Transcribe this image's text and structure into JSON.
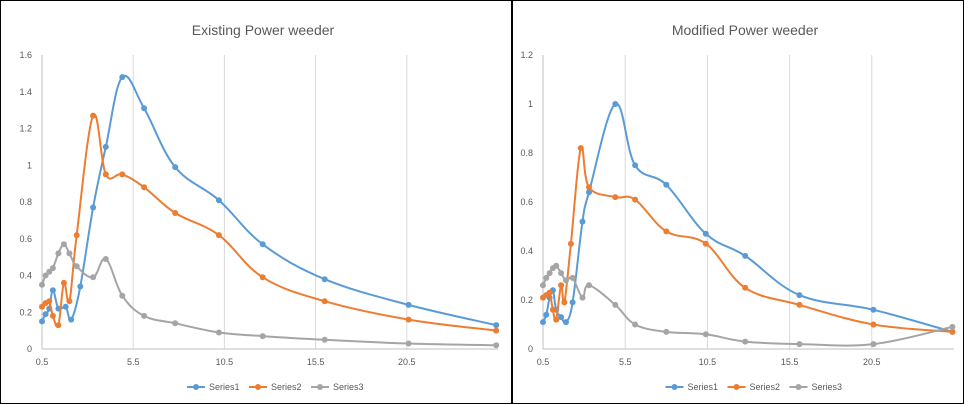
{
  "colors": {
    "Series1": "#5b9bd5",
    "Series2": "#ed7d31",
    "Series3": "#a5a5a5"
  },
  "chart_data": [
    {
      "type": "line",
      "title": "Existing Power weeder",
      "xlabel": "",
      "ylabel": "",
      "xlim": [
        0.5,
        25.5
      ],
      "ylim": [
        0,
        1.6
      ],
      "xticks": [
        "0.5",
        "5.5",
        "10.5",
        "15.5",
        "20.5"
      ],
      "yticks": [
        "0",
        "0.2",
        "0.4",
        "0.6",
        "0.8",
        "1",
        "1.2",
        "1.4",
        "1.6"
      ],
      "grid": "vertical",
      "legend": "bottom",
      "series": [
        {
          "name": "Series1",
          "x": [
            0.5,
            0.7,
            0.9,
            1.1,
            1.4,
            1.8,
            2.1,
            2.6,
            3.3,
            4.0,
            4.9,
            6.1,
            7.8,
            10.2,
            12.6,
            16.0,
            20.6,
            25.4
          ],
          "y": [
            0.15,
            0.19,
            0.22,
            0.32,
            0.22,
            0.23,
            0.16,
            0.34,
            0.77,
            1.1,
            1.48,
            1.31,
            0.99,
            0.81,
            0.57,
            0.38,
            0.24,
            0.13
          ]
        },
        {
          "name": "Series2",
          "x": [
            0.5,
            0.7,
            0.9,
            1.1,
            1.4,
            1.7,
            2.0,
            2.4,
            3.3,
            4.0,
            4.9,
            6.1,
            7.8,
            10.2,
            12.6,
            16.0,
            20.6,
            25.4
          ],
          "y": [
            0.23,
            0.25,
            0.26,
            0.18,
            0.13,
            0.36,
            0.26,
            0.62,
            1.27,
            0.95,
            0.95,
            0.88,
            0.74,
            0.62,
            0.39,
            0.26,
            0.16,
            0.1
          ]
        },
        {
          "name": "Series3",
          "x": [
            0.5,
            0.7,
            0.9,
            1.1,
            1.4,
            1.7,
            2.0,
            2.4,
            3.3,
            4.0,
            4.9,
            6.1,
            7.8,
            10.2,
            12.6,
            16.0,
            20.6,
            25.4
          ],
          "y": [
            0.35,
            0.4,
            0.42,
            0.44,
            0.52,
            0.57,
            0.52,
            0.45,
            0.39,
            0.49,
            0.29,
            0.18,
            0.14,
            0.09,
            0.07,
            0.05,
            0.03,
            0.02
          ]
        }
      ]
    },
    {
      "type": "line",
      "title": "Modified Power weeder",
      "xlabel": "",
      "ylabel": "",
      "xlim": [
        0.5,
        25.5
      ],
      "ylim": [
        0,
        1.2
      ],
      "xticks": [
        "0.5",
        "5.5",
        "10.5",
        "15.5",
        "20.5"
      ],
      "yticks": [
        "0",
        "0.2",
        "0.4",
        "0.6",
        "0.8",
        "1",
        "1.2"
      ],
      "grid": "vertical",
      "legend": "bottom",
      "series": [
        {
          "name": "Series1",
          "x": [
            0.5,
            0.7,
            0.9,
            1.1,
            1.3,
            1.6,
            1.9,
            2.3,
            2.9,
            3.3,
            4.9,
            6.1,
            8.0,
            10.4,
            12.8,
            16.1,
            20.6,
            25.4
          ],
          "y": [
            0.11,
            0.14,
            0.21,
            0.24,
            0.16,
            0.13,
            0.11,
            0.19,
            0.52,
            0.64,
            1.0,
            0.75,
            0.67,
            0.47,
            0.38,
            0.22,
            0.16,
            0.07
          ]
        },
        {
          "name": "Series2",
          "x": [
            0.5,
            0.7,
            0.9,
            1.1,
            1.3,
            1.6,
            1.8,
            2.2,
            2.8,
            3.3,
            4.9,
            6.1,
            8.0,
            10.4,
            12.8,
            16.1,
            20.6,
            25.4
          ],
          "y": [
            0.21,
            0.22,
            0.23,
            0.16,
            0.12,
            0.26,
            0.19,
            0.43,
            0.82,
            0.66,
            0.62,
            0.61,
            0.48,
            0.43,
            0.25,
            0.18,
            0.1,
            0.07
          ]
        },
        {
          "name": "Series3",
          "x": [
            0.5,
            0.7,
            0.9,
            1.1,
            1.3,
            1.6,
            1.9,
            2.3,
            2.9,
            3.3,
            4.9,
            6.1,
            8.0,
            10.4,
            12.8,
            16.1,
            20.6,
            25.4
          ],
          "y": [
            0.26,
            0.29,
            0.31,
            0.33,
            0.34,
            0.31,
            0.28,
            0.29,
            0.21,
            0.26,
            0.18,
            0.1,
            0.07,
            0.06,
            0.03,
            0.02,
            0.02,
            0.09
          ]
        }
      ]
    }
  ]
}
